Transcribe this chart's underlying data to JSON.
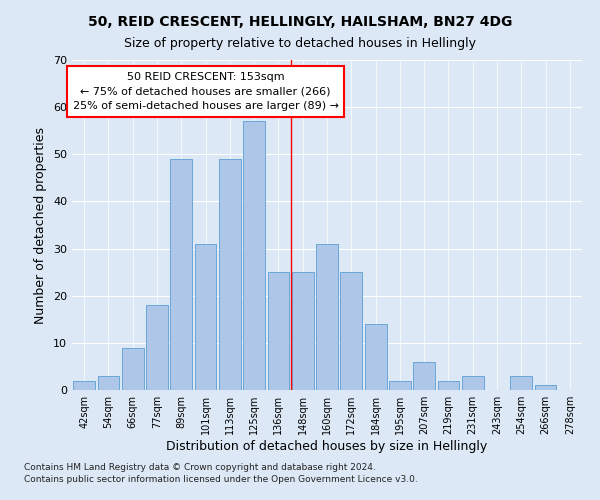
{
  "title": "50, REID CRESCENT, HELLINGLY, HAILSHAM, BN27 4DG",
  "subtitle": "Size of property relative to detached houses in Hellingly",
  "xlabel": "Distribution of detached houses by size in Hellingly",
  "ylabel": "Number of detached properties",
  "footnote1": "Contains HM Land Registry data © Crown copyright and database right 2024.",
  "footnote2": "Contains public sector information licensed under the Open Government Licence v3.0.",
  "categories": [
    "42sqm",
    "54sqm",
    "66sqm",
    "77sqm",
    "89sqm",
    "101sqm",
    "113sqm",
    "125sqm",
    "136sqm",
    "148sqm",
    "160sqm",
    "172sqm",
    "184sqm",
    "195sqm",
    "207sqm",
    "219sqm",
    "231sqm",
    "243sqm",
    "254sqm",
    "266sqm",
    "278sqm"
  ],
  "values": [
    2,
    3,
    9,
    18,
    49,
    31,
    49,
    57,
    25,
    25,
    31,
    25,
    14,
    2,
    6,
    2,
    3,
    0,
    3,
    1,
    0
  ],
  "bar_color": "#aec6e8",
  "bar_edge_color": "#5a9fd4",
  "vline_x": 8.5,
  "vline_color": "red",
  "annotation_text": "50 REID CRESCENT: 153sqm\n← 75% of detached houses are smaller (266)\n25% of semi-detached houses are larger (89) →",
  "annotation_box_color": "white",
  "annotation_box_edge_color": "red",
  "ylim": [
    0,
    70
  ],
  "yticks": [
    0,
    10,
    20,
    30,
    40,
    50,
    60,
    70
  ],
  "fig_bg_color": "#dce8f5",
  "plot_bg_color": "#dce8f5",
  "title_fontsize": 10,
  "subtitle_fontsize": 9,
  "annot_fontsize": 8,
  "xlabel_fontsize": 9,
  "ylabel_fontsize": 9,
  "footnote_fontsize": 6.5
}
